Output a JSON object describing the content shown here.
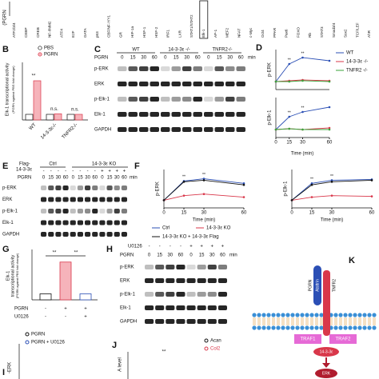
{
  "panel_A": {
    "y_label": "(PGRN",
    "factors": [
      "ATF2/3/4",
      "CEBP",
      "CREB",
      "NF-I/MM2",
      "ATF4",
      "E2F",
      "GATA",
      "p53",
      "CBF/NF-Y/Y1",
      "GR",
      "HIF-1a",
      "HSF-1",
      "HSF-2",
      "IRF1",
      "LXR",
      "STAT1/STAT2",
      "Elk-1",
      "AP-1",
      "MEF2",
      "NFAT",
      "c-Myc",
      "Oct4",
      "PPAR",
      "Pax6",
      "FOXO",
      "Rb",
      "STAT3",
      "Smad3/4",
      "Sox2",
      "TCF/LEF",
      "AhR"
    ]
  },
  "panel_B": {
    "label": "B",
    "legend": [
      "PBS",
      "PGRN"
    ],
    "y_label": "Elk-1 transcriptional activity",
    "y_sublabel": "(PGRN against PBS fold change)",
    "groups": [
      "WT",
      "14-3-3ε-/-",
      "TNFR2-/-"
    ],
    "values": [
      [
        1,
        7
      ],
      [
        1,
        1.1
      ],
      [
        1,
        1
      ]
    ],
    "ylim": [
      0,
      10
    ],
    "significance": [
      "**",
      "n.s.",
      "n.s."
    ]
  },
  "panel_C": {
    "label": "C",
    "groups": [
      "WT",
      "14-3-3ε -/-",
      "TNFR2-/-"
    ],
    "treatment": "PGRN",
    "times": [
      "0",
      "15",
      "30",
      "60"
    ],
    "unit": "min",
    "rows": [
      "p-ERK",
      "ERK",
      "p-Elk-1",
      "Elk-1",
      "GAPDH"
    ]
  },
  "panel_D": {
    "label": "D",
    "legend": [
      {
        "name": "WT",
        "color": "#2b4fb5"
      },
      {
        "name": "14-3-3ε -/-",
        "color": "#d9374a"
      },
      {
        "name": "TNFR2 -/-",
        "color": "#3aa33a"
      }
    ],
    "x": [
      0,
      15,
      30,
      60
    ],
    "xlim": [
      0,
      60
    ],
    "xticks": [
      0,
      15,
      30,
      60
    ],
    "x_label": "Time (min)",
    "ylim": [
      0,
      5
    ],
    "plots": [
      {
        "y_label": "p-ERK",
        "series": [
          [
            1,
            3.2,
            4,
            3.6
          ],
          [
            1,
            1.1,
            1.2,
            1.1
          ],
          [
            1,
            1,
            1.1,
            1
          ]
        ]
      },
      {
        "y_label": "p-Elk-1",
        "series": [
          [
            1,
            2.6,
            3.2,
            3.8
          ],
          [
            1,
            1.1,
            1,
            1.2
          ],
          [
            1,
            1.1,
            1,
            1
          ]
        ]
      }
    ],
    "significance": "**"
  },
  "panel_E": {
    "label": "E",
    "flag_label": [
      "Flag-",
      "14-3-3ε"
    ],
    "groups": [
      "Ctrl",
      "14-3-3ε KO"
    ],
    "flag": [
      "-",
      "-",
      "-",
      "-",
      "-",
      "-",
      "-",
      "-",
      "+",
      "+",
      "+",
      "+"
    ],
    "treatment": "PGRN",
    "times": [
      "0",
      "15",
      "30",
      "60"
    ],
    "unit": "min",
    "rows": [
      "p-ERK",
      "ERK",
      "p-Elk-1",
      "Elk-1",
      "GAPDH"
    ]
  },
  "panel_F": {
    "label": "F",
    "legend": [
      {
        "name": "Ctrl",
        "color": "#2b4fb5"
      },
      {
        "name": "14-3-3ε KO",
        "color": "#d9374a"
      },
      {
        "name": "14-3-3ε KO + 14-3-3ε Flag",
        "color": "#111111"
      }
    ],
    "x": [
      0,
      15,
      30,
      60
    ],
    "xlim": [
      0,
      60
    ],
    "xticks": [
      0,
      15,
      30,
      60
    ],
    "x_label": "Time (min)",
    "ylim": [
      0,
      5
    ],
    "plots": [
      {
        "y_label": "p-ERK",
        "series": [
          [
            1,
            3.5,
            3.8,
            3.2
          ],
          [
            1,
            1.6,
            1.8,
            1.4
          ],
          [
            1,
            3.4,
            3.6,
            3
          ]
        ]
      },
      {
        "y_label": "p-Elk-1",
        "series": [
          [
            1,
            3.2,
            3.6,
            3.7
          ],
          [
            1,
            1.4,
            1.6,
            1.5
          ],
          [
            1,
            3,
            3.4,
            3.6
          ]
        ]
      }
    ],
    "significance": "**"
  },
  "panel_G": {
    "label": "G",
    "y_label": [
      "Elk-1",
      "transcriptional activity",
      "(PGRN against PBS fold change)"
    ],
    "values": [
      1,
      6.3,
      1
    ],
    "colors": [
      "#111111",
      "#d9374a",
      "#2b4fb5"
    ],
    "ylim": [
      0,
      8
    ],
    "significance": "**",
    "rows": [
      {
        "name": "PGRN",
        "signs": [
          "-",
          "+",
          "+"
        ]
      },
      {
        "name": "U0126",
        "signs": [
          "-",
          "-",
          "+"
        ]
      }
    ]
  },
  "panel_H": {
    "label": "H",
    "inhibitor": "U0126",
    "inhibitor_signs": [
      "-",
      "-",
      "-",
      "-",
      "+",
      "+",
      "+",
      "+"
    ],
    "treatment": "PGRN",
    "times": [
      "0",
      "15",
      "30",
      "60"
    ],
    "unit": "min",
    "rows": [
      "p-ERK",
      "ERK",
      "p-Elk-1",
      "Elk-1",
      "GAPDH"
    ]
  },
  "panel_I": {
    "label": "I",
    "legend": [
      "PGRN",
      "PGRN + U0126"
    ],
    "y_label": "-ERK"
  },
  "panel_J": {
    "label": "J",
    "y_label": "A level",
    "legend": [
      "Acan",
      "Col2"
    ],
    "significance": "**"
  },
  "panel_K": {
    "label": "K",
    "ligand": [
      "Atsttrin",
      "PGRN"
    ],
    "receptor": "TNFR2",
    "adaptors": [
      "TRAF1",
      "TRAF2"
    ],
    "scaffold": "14-3-3ε",
    "kinase": "ERK"
  }
}
